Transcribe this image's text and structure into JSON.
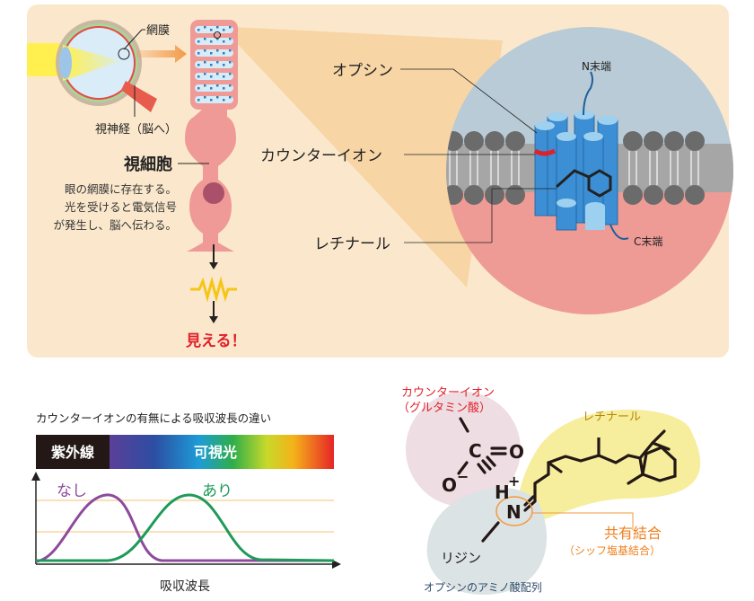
{
  "top_panel": {
    "retina_label": "網膜",
    "optic_nerve_label": "視神経（脳へ）",
    "photoreceptor_title": "視細胞",
    "photoreceptor_desc": [
      "眼の網膜に存在する。",
      "光を受けると電気信号",
      "が発生し、脳へ伝わる。"
    ],
    "result_label": "見える！",
    "opsin_label": "オプシン",
    "counterion_label": "カウンターイオン",
    "retinal_label": "レチナール",
    "n_terminus_label": "N末端",
    "c_terminus_label": "C末端"
  },
  "spectrum_panel": {
    "title": "カウンターイオンの有無による吸収波長の違い",
    "uv_label": "紫外線",
    "visible_label": "可視光",
    "curve_without_label": "なし",
    "curve_with_label": "あり",
    "xaxis_label": "吸収波長",
    "colors": {
      "without": "#8e4a9c",
      "with": "#1f9a5a"
    }
  },
  "chemistry_panel": {
    "counterion_label": "カウンターイオン",
    "counterion_sub": "（グルタミン酸）",
    "retinal_label": "レチナール",
    "bond_label": "共有結合",
    "bond_sub": "（シッフ塩基結合）",
    "lysine_label": "リジン",
    "opsin_seq_label": "オプシンのアミノ酸配列",
    "atoms": {
      "c": "C",
      "o1": "O",
      "o2": "O",
      "minus": "−",
      "h": "H",
      "plus": "+",
      "n": "N"
    }
  }
}
